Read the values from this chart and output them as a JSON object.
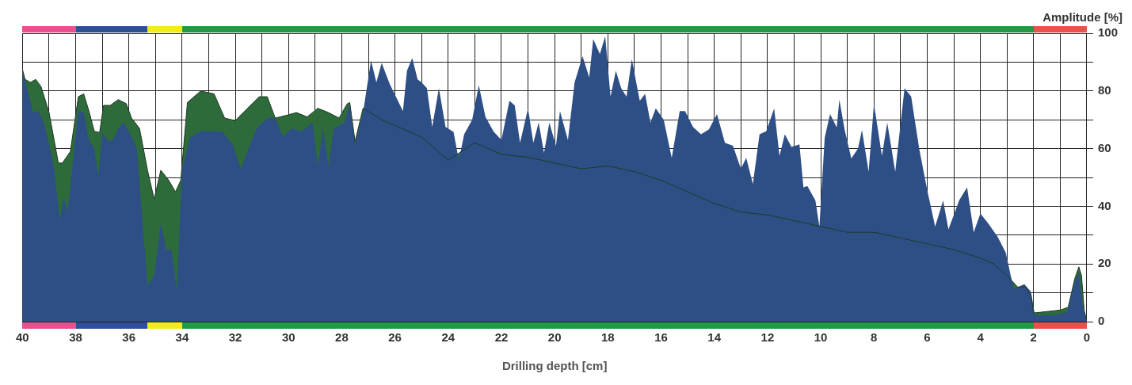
{
  "chart_data": {
    "type": "area",
    "xlabel": "Drilling depth [cm]",
    "ylabel": "Amplitude [%]",
    "xlim": [
      40,
      0
    ],
    "ylim": [
      0,
      100
    ],
    "xticks": [
      40,
      {
        "value": 39,
        "label": null
      },
      38,
      {
        "value": 37,
        "label": null
      },
      36,
      {
        "value": 35,
        "label": null
      },
      34,
      {
        "value": 33,
        "label": null
      },
      32,
      {
        "value": 31,
        "label": null
      },
      30,
      {
        "value": 29,
        "label": null
      },
      28,
      {
        "value": 27,
        "label": null
      },
      26,
      {
        "value": 25,
        "label": null
      },
      24,
      {
        "value": 23,
        "label": null
      },
      22,
      {
        "value": 21,
        "label": null
      },
      20,
      {
        "value": 19,
        "label": null
      },
      18,
      {
        "value": 17,
        "label": null
      },
      16,
      {
        "value": 15,
        "label": null
      },
      14,
      {
        "value": 13,
        "label": null
      },
      12,
      {
        "value": 11,
        "label": null
      },
      10,
      {
        "value": 9,
        "label": null
      },
      8,
      {
        "value": 7,
        "label": null
      },
      6,
      {
        "value": 5,
        "label": null
      },
      4,
      {
        "value": 3,
        "label": null
      },
      2,
      {
        "value": 1,
        "label": null
      },
      0
    ],
    "yticks": [
      0,
      {
        "value": 10,
        "label": null
      },
      20,
      {
        "value": 30,
        "label": null
      },
      40,
      {
        "value": 50,
        "label": null
      },
      60,
      {
        "value": 70,
        "label": null
      },
      80,
      {
        "value": 90,
        "label": null
      },
      100
    ],
    "grid": true,
    "marker": "none",
    "series": [
      {
        "color": "#2e4f86",
        "x": [
          40,
          39.8,
          39.6,
          39.4,
          39.2,
          39,
          38.8,
          38.6,
          38.45,
          38.3,
          38.1,
          37.9,
          37.7,
          37.5,
          37.3,
          37.15,
          37,
          36.8,
          36.6,
          36.4,
          36.2,
          36,
          35.7,
          35.3,
          35.05,
          34.8,
          34.6,
          34.4,
          34.2,
          34,
          33.7,
          33.3,
          32.9,
          32.5,
          32.1,
          31.8,
          31.5,
          31.2,
          30.8,
          30.5,
          30.2,
          29.9,
          29.5,
          29.1,
          28.9,
          28.7,
          28.5,
          28.3,
          27.9,
          27.7,
          27.5,
          27.2,
          26.9,
          26.7,
          26.5,
          26.2,
          25.7,
          25.55,
          25.35,
          25.15,
          25,
          24.8,
          24.6,
          24.35,
          24.1,
          23.8,
          23.6,
          23.4,
          23.1,
          22.85,
          22.6,
          22.3,
          22,
          21.7,
          21.5,
          21.3,
          21,
          20.8,
          20.6,
          20.4,
          20.2,
          19.95,
          19.8,
          19.5,
          19.25,
          18.95,
          18.7,
          18.55,
          18.3,
          18.1,
          17.9,
          17.7,
          17.5,
          17.3,
          17.1,
          16.8,
          16.6,
          16.4,
          16.2,
          15.9,
          15.6,
          15.3,
          15.1,
          14.8,
          14.5,
          14.2,
          13.9,
          13.6,
          13.3,
          13,
          12.8,
          12.55,
          12.3,
          12.05,
          11.75,
          11.55,
          11.35,
          11.1,
          10.8,
          10.65,
          10.5,
          10.2,
          10.05,
          9.85,
          9.65,
          9.4,
          9.3,
          9.1,
          8.85,
          8.6,
          8.45,
          8.2,
          8,
          7.7,
          7.5,
          7.2,
          6.85,
          6.6,
          6.3,
          6,
          5.7,
          5.4,
          5.2,
          4.8,
          4.5,
          4.25,
          4,
          3.7,
          3.35,
          3.05,
          2.75,
          2.35,
          2.1,
          1.95,
          1.25,
          0.75,
          0.45,
          0.3,
          0.15,
          0
        ],
        "values": [
          87,
          80,
          72.5,
          73,
          69,
          61.5,
          52.5,
          35,
          43,
          38,
          56,
          73,
          72.5,
          63,
          60,
          50,
          66,
          62.5,
          63,
          67,
          69,
          66,
          60,
          12.5,
          16,
          34,
          25,
          25,
          10.6,
          52.5,
          64,
          66,
          66,
          66,
          61.5,
          53,
          60,
          67,
          70.6,
          70.6,
          64,
          67,
          66,
          69,
          54,
          67,
          54,
          67,
          69,
          75.5,
          61.5,
          72.5,
          90.6,
          83,
          89.7,
          82.5,
          73,
          87,
          91.4,
          84,
          83,
          81,
          67.5,
          81,
          67.5,
          65.8,
          56,
          65,
          70,
          82,
          71,
          66,
          63,
          76.6,
          75,
          62,
          74,
          62,
          69,
          58.5,
          69,
          61,
          73,
          63,
          83,
          92,
          84.7,
          98,
          92.8,
          99,
          78,
          87,
          81,
          78,
          91,
          76.6,
          79,
          69,
          74,
          70,
          56.8,
          73,
          73,
          67.5,
          65,
          66.7,
          72,
          62,
          61,
          53,
          56.8,
          47.7,
          65,
          66,
          74,
          57.5,
          65,
          60.6,
          61.5,
          46.6,
          47,
          42,
          33,
          63.8,
          72,
          67.4,
          77,
          66.5,
          56.6,
          60,
          66.5,
          52,
          75.6,
          57.5,
          69,
          52,
          81,
          78,
          60,
          45.7,
          33,
          42,
          32,
          42,
          46.6,
          31,
          37.5,
          34,
          29.4,
          24,
          11.3,
          13,
          10.4,
          2.3,
          2.3,
          3.2,
          14,
          17,
          5,
          0
        ]
      },
      {
        "color": "#2e6b3a",
        "x": [
          40,
          39.9,
          39.7,
          39.5,
          39.3,
          39,
          38.65,
          38.5,
          38.2,
          37.9,
          37.7,
          37.5,
          37.3,
          37.1,
          36.95,
          36.7,
          36.4,
          36.1,
          35.9,
          35.6,
          35.3,
          35.05,
          34.8,
          34.5,
          34.25,
          34.05,
          33.8,
          33.3,
          32.8,
          32.4,
          32,
          31.7,
          31.1,
          30.8,
          30.5,
          30.1,
          29.7,
          29.3,
          28.9,
          28.5,
          28.1,
          27.8,
          27.7,
          27.5,
          27.2,
          26.5,
          25,
          24,
          23,
          22,
          21,
          20,
          19,
          18,
          17,
          16,
          15,
          14,
          13,
          12,
          11,
          10,
          9,
          8,
          7,
          6,
          5,
          4,
          3.5,
          3,
          2.6,
          2.3,
          2.1,
          2,
          1.5,
          1,
          0.7,
          0.45,
          0.3,
          0.2,
          0.1,
          0
        ],
        "values": [
          87.5,
          84,
          83,
          84,
          81.5,
          72.5,
          55,
          55,
          59,
          78,
          79,
          73,
          66,
          65.6,
          75,
          75,
          77,
          75.6,
          70.6,
          67,
          52.5,
          42.5,
          52.5,
          49,
          45,
          49,
          76,
          80,
          79,
          70.6,
          69.7,
          72.5,
          78,
          78,
          70.6,
          71.5,
          72.5,
          71,
          74,
          72.5,
          70.6,
          75.5,
          76,
          62.5,
          74,
          70,
          64,
          56,
          62,
          58,
          57,
          55,
          53,
          54,
          52,
          49,
          45,
          41,
          38,
          37,
          35,
          33,
          31,
          31,
          29,
          27,
          25,
          22,
          20,
          16,
          12,
          12,
          9,
          3,
          3.5,
          4,
          5,
          15,
          19,
          16,
          4,
          0
        ]
      }
    ]
  }
}
